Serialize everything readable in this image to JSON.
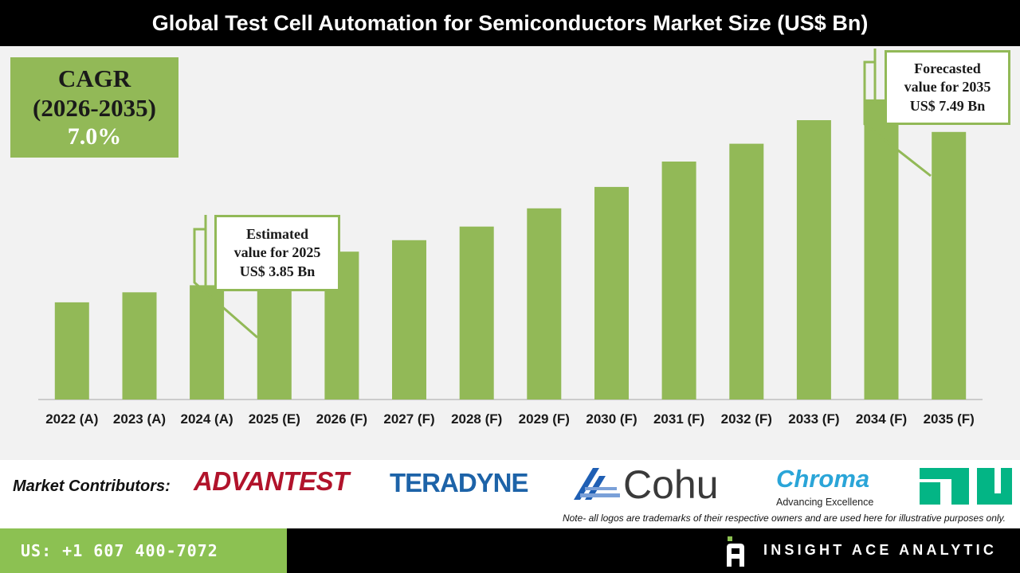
{
  "header": {
    "title": "Global Test Cell Automation for Semiconductors Market Size (US$ Bn)"
  },
  "cagr": {
    "label": "CAGR",
    "period": "(2026-2035)",
    "value": "7.0%"
  },
  "callouts": {
    "estimated": {
      "line1": "Estimated",
      "line2": "value for 2025",
      "line3": "US$ 3.85 Bn"
    },
    "forecasted": {
      "line1": "Forecasted",
      "line2": "value for 2035",
      "line3": "US$ 7.49 Bn"
    }
  },
  "chart_data": {
    "type": "bar",
    "title": "Global Test Cell Automation for Semiconductors Market Size (US$ Bn)",
    "categories": [
      "2022 (A)",
      "2023 (A)",
      "2024 (A)",
      "2025 (E)",
      "2026 (F)",
      "2027 (F)",
      "2028 (F)",
      "2029 (F)",
      "2030 (F)",
      "2031 (F)",
      "2032 (F)",
      "2033 (F)",
      "2034 (F)",
      "2035 (F)"
    ],
    "values": [
      2.72,
      3.0,
      3.2,
      3.85,
      4.14,
      4.46,
      4.84,
      5.35,
      5.95,
      6.66,
      7.16,
      7.82,
      8.4,
      7.49
    ],
    "ylim": [
      0,
      9
    ],
    "xlabel": "",
    "ylabel": "",
    "grid": false,
    "colors": {
      "bar": "#92b957",
      "axis": "#bfbfbf",
      "label": "#1a1a1a"
    }
  },
  "contributors": {
    "label": "Market Contributors:",
    "logos": [
      "ADVANTEST",
      "TERADYNE",
      "Cohu",
      "Chroma",
      "Advancing Excellence"
    ],
    "note": "Note- all logos are trademarks of their respective owners and are used here for illustrative purposes only."
  },
  "footer": {
    "phone": "US: +1 607 400-7072",
    "brand": "INSIGHT ACE ANALYTIC"
  }
}
